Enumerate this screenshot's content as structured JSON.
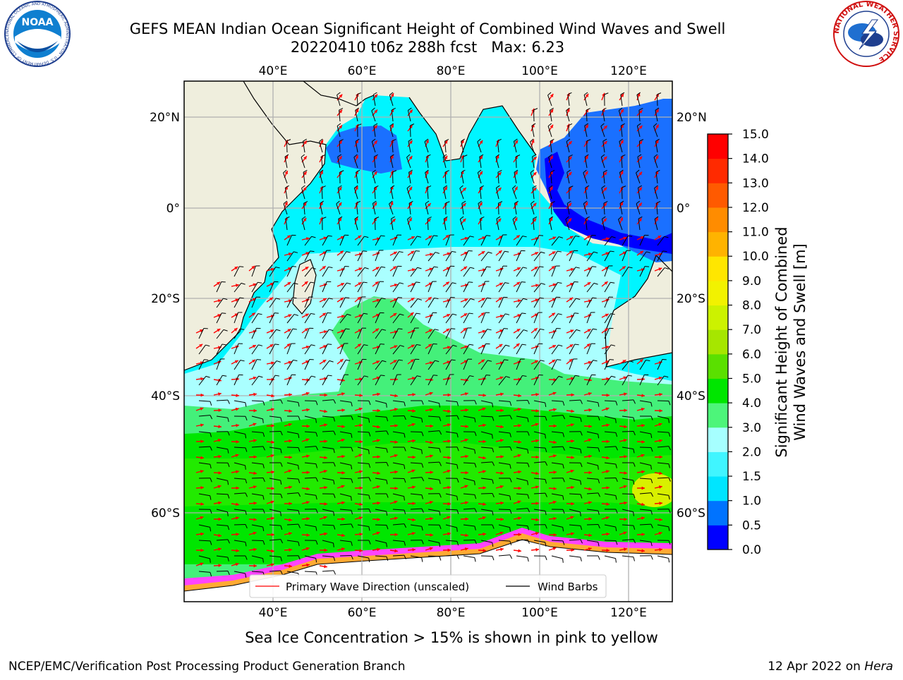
{
  "header": {
    "title_line1": "GEFS MEAN Indian Ocean Significant Height of Combined Wind Waves and Swell",
    "title_line2": "20220410 t06z 288h fcst   Max: 6.23"
  },
  "logos": {
    "noaa_text": "NOAA",
    "noaa_ring": "NATIONAL OCEANIC AND ATMOSPHERIC ADMINISTRATION · U.S. DEPARTMENT OF COMMERCE",
    "nws_ring": "NATIONAL WEATHER SERVICE"
  },
  "map": {
    "lon_labels": [
      "40°E",
      "60°E",
      "80°E",
      "100°E",
      "120°E"
    ],
    "lat_labels": [
      "20°N",
      "0°",
      "20°S",
      "40°S",
      "60°S"
    ]
  },
  "legend": {
    "wave_label": "Primary Wave Direction (unscaled)",
    "barb_label": "Wind Barbs"
  },
  "colorbar": {
    "label_line1": "Significant Height of Combined",
    "label_line2": "Wind Waves and Swell [m]",
    "ticks": [
      "0.0",
      "0.5",
      "1.0",
      "1.5",
      "2.0",
      "3.0",
      "4.0",
      "5.0",
      "6.0",
      "7.0",
      "8.0",
      "9.0",
      "10.0",
      "11.0",
      "12.0",
      "13.0",
      "14.0",
      "15.0"
    ],
    "colors": [
      "#0000ff",
      "#0073ff",
      "#00e5ff",
      "#40f5ff",
      "#a6ffff",
      "#4df57a",
      "#00e600",
      "#5ae000",
      "#a6e600",
      "#ccf200",
      "#f2f200",
      "#ffe600",
      "#ffb300",
      "#ff8c00",
      "#ff5a00",
      "#ff2a00",
      "#ff0000"
    ]
  },
  "footer": {
    "ice_note": "Sea Ice Concentration > 15% is shown in pink to yellow",
    "org": "NCEP/EMC/Verification Post Processing Product Generation Branch",
    "date": "12 Apr 2022 on",
    "host": "Hera"
  }
}
